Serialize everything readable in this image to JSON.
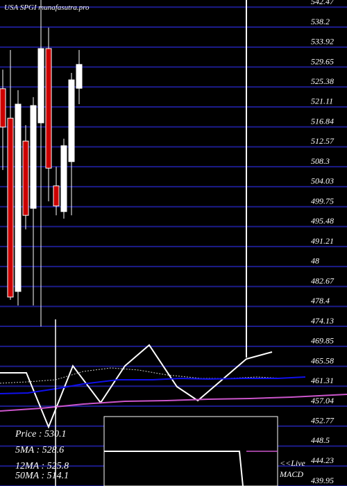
{
  "chart_data": {
    "type": "candlestick",
    "title": "USA SPGI munafasutra.pro",
    "ylim": [
      439.95,
      544
    ],
    "yticks": [
      542.47,
      538.2,
      533.92,
      529.65,
      525.38,
      521.11,
      516.84,
      512.57,
      508.3,
      504.03,
      499.75,
      495.48,
      491.21,
      {
        "value": 486.94,
        "label": "48"
      },
      482.67,
      478.4,
      474.13,
      469.85,
      465.58,
      461.31,
      457.04,
      452.77,
      448.5,
      444.23,
      439.95
    ],
    "grid": true,
    "up_color": "#ffffff",
    "down_color": "#cc0000",
    "open": [
      525.0,
      518.7,
      481.6,
      513.8,
      499.4,
      517.7,
      533.6,
      504.2,
      498.7,
      509.4,
      525.1
    ],
    "high": [
      529.1,
      533.3,
      524.7,
      517.2,
      523.2,
      544.0,
      538.1,
      508.3,
      514.3,
      528.4,
      533.3
    ],
    "low": [
      507.6,
      479.8,
      478.6,
      494.9,
      478.6,
      474.1,
      500.9,
      497.9,
      497.2,
      497.9,
      521.7
    ],
    "close": [
      516.8,
      480.4,
      521.7,
      497.9,
      521.4,
      533.6,
      508.0,
      499.9,
      512.8,
      526.9,
      530.2
    ],
    "info": [
      "Price : 530.1",
      "5MA : 528.6",
      "12MA : 525.8",
      "50MA : 514.1"
    ],
    "live_label": "<<Live",
    "macd_label": "MACD"
  }
}
